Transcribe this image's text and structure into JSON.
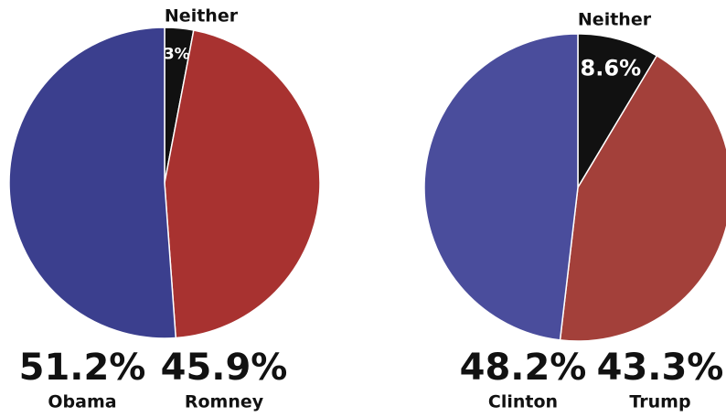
{
  "chart_data": [
    {
      "type": "pie",
      "categories": [
        "Obama",
        "Romney",
        "Neither"
      ],
      "values": [
        51.2,
        45.9,
        3
      ],
      "value_labels": [
        "51.2%",
        "45.9%",
        "3%"
      ],
      "colors": [
        "#3b3f8e",
        "#a83230",
        "#111111"
      ]
    },
    {
      "type": "pie",
      "categories": [
        "Clinton",
        "Trump",
        "Neither"
      ],
      "values": [
        48.2,
        43.3,
        8.6
      ],
      "value_labels": [
        "48.2%",
        "43.3%",
        "8.6%"
      ],
      "colors": [
        "#4a4d9c",
        "#a3403a",
        "#111111"
      ]
    }
  ]
}
